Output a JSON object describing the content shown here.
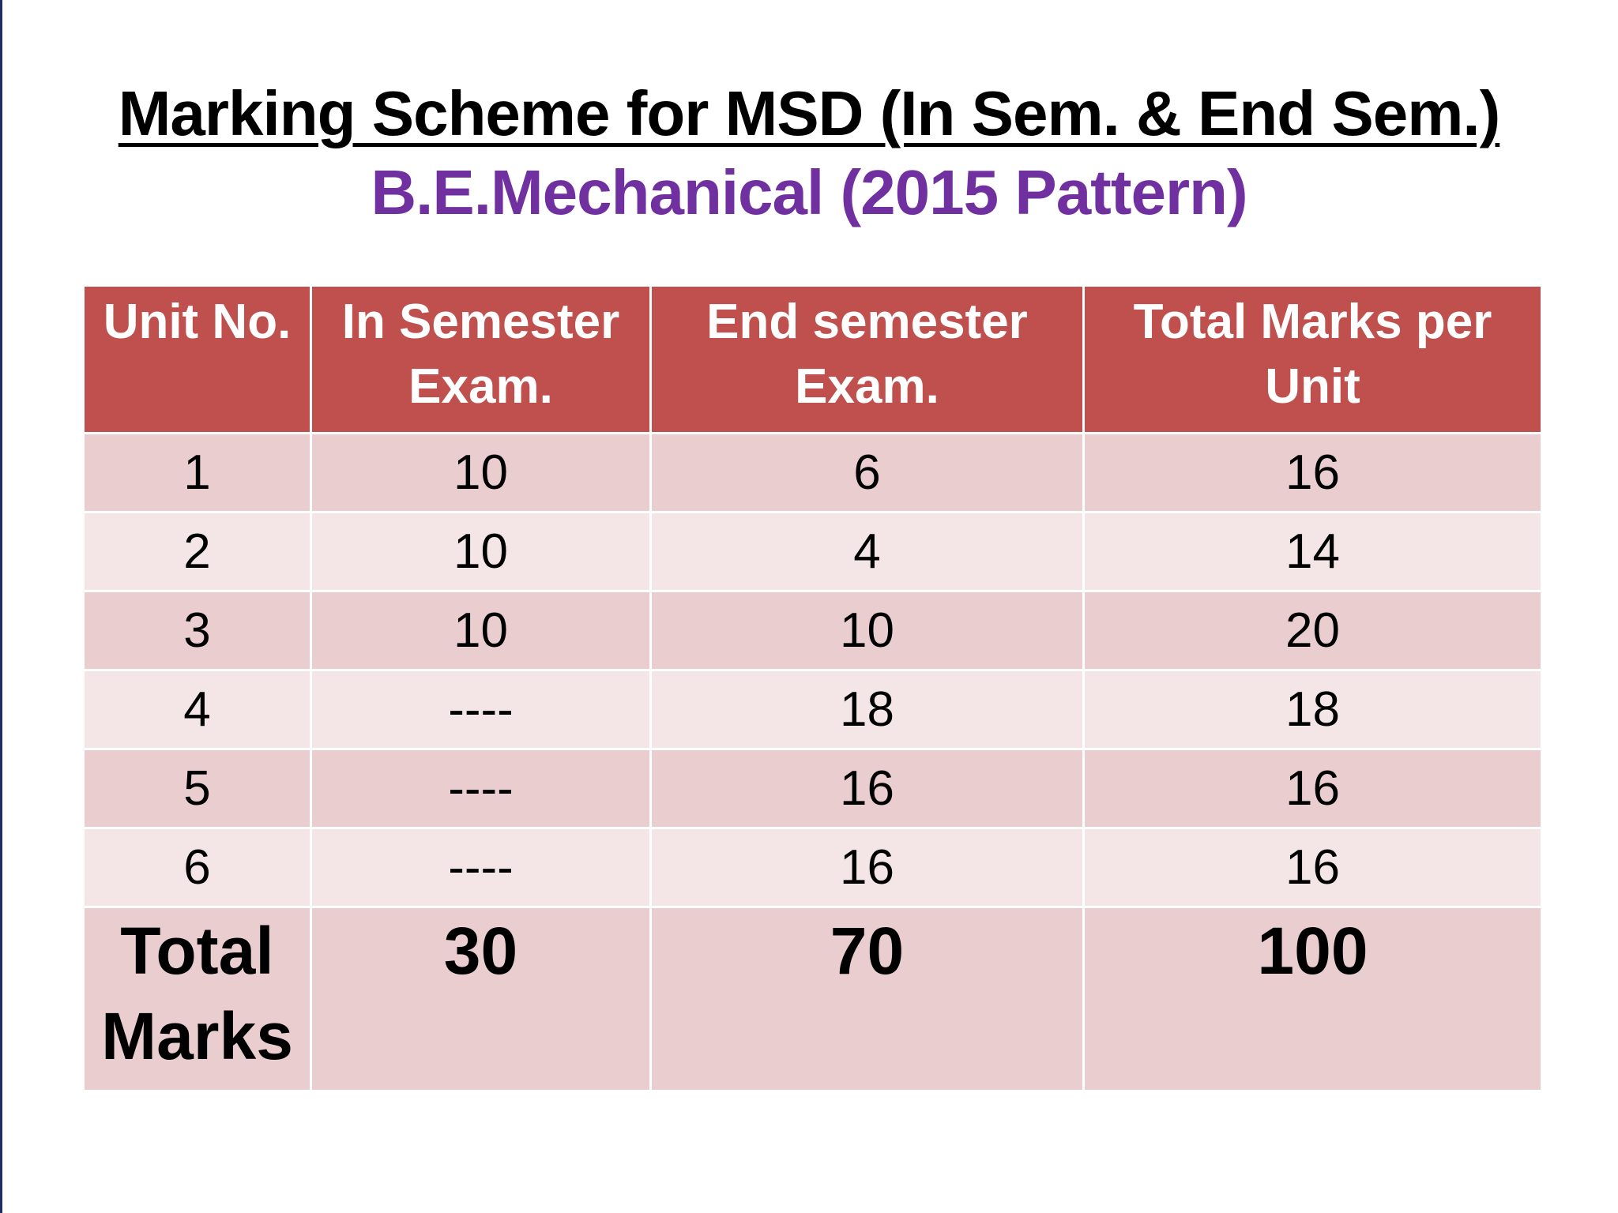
{
  "title": "Marking Scheme for MSD (In Sem. & End Sem.)",
  "subtitle": "B.E.Mechanical (2015 Pattern)",
  "table": {
    "headers": [
      "Unit No.",
      "In Semester Exam.",
      "End semester Exam.",
      "Total Marks per Unit"
    ],
    "rows": [
      [
        "1",
        "10",
        "6",
        "16"
      ],
      [
        "2",
        "10",
        "4",
        "14"
      ],
      [
        "3",
        "10",
        "10",
        "20"
      ],
      [
        "4",
        "----",
        "18",
        "18"
      ],
      [
        "5",
        "----",
        "16",
        "16"
      ],
      [
        "6",
        "----",
        "16",
        "16"
      ]
    ],
    "total_row": [
      "Total Marks",
      "30",
      "70",
      "100"
    ]
  },
  "colors": {
    "header_bg": "#c0504d",
    "row_dark": "#e9cdcf",
    "row_light": "#f4e6e7",
    "subtitle": "#7030a0"
  }
}
